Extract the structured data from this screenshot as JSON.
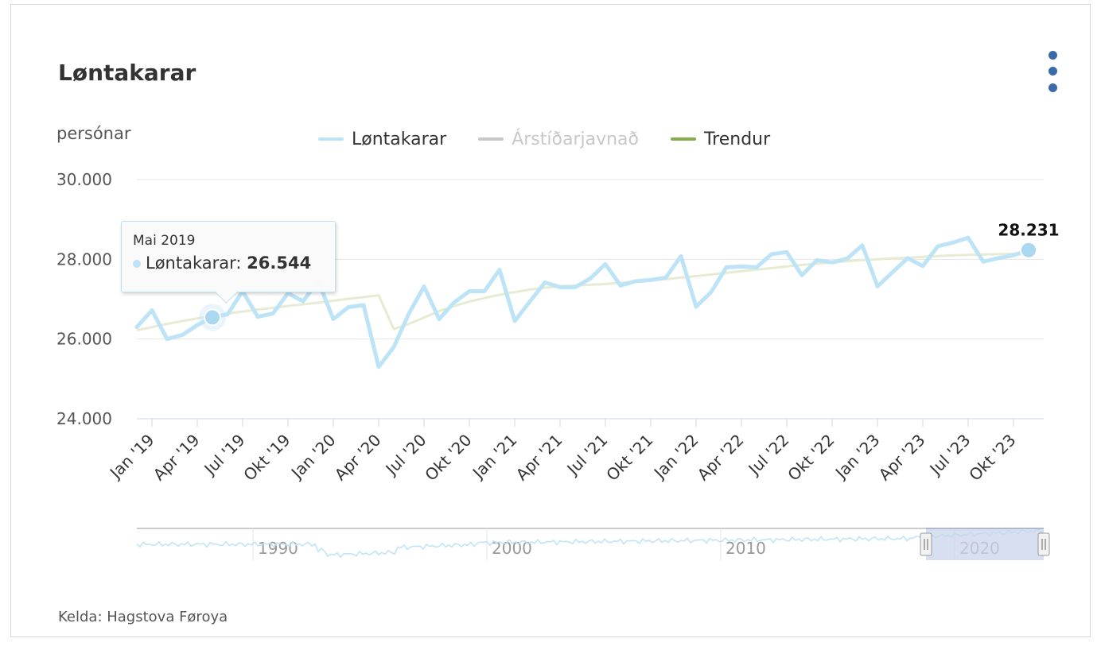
{
  "header": {
    "title": "Løntakarar",
    "menu_icon": "kebab-menu-icon"
  },
  "source": "Kelda: Hagstova Føroya",
  "tooltip": {
    "date": "Mai 2019",
    "series": "Løntakarar",
    "value": "26.544"
  },
  "last_label": "28.231",
  "colors": {
    "loentakarar": "#bde3f6",
    "arstidar": "#c8c8c8",
    "trendur": "#86ad4b",
    "trend_line": "#e6ecd4",
    "navigator_mask": "#c9d4ec",
    "menu": "#3b6aa8"
  },
  "chart_data": {
    "type": "line",
    "title": "Løntakarar",
    "ylabel": "persónar",
    "ylim": [
      24000,
      30000
    ],
    "yticks": [
      "24.000",
      "26.000",
      "28.000",
      "30.000"
    ],
    "xticks": [
      "Jan '19",
      "Apr '19",
      "Jul '19",
      "Okt '19",
      "Jan '20",
      "Apr '20",
      "Jul '20",
      "Okt '20",
      "Jan '21",
      "Apr '21",
      "Jul '21",
      "Okt '21",
      "Jan '22",
      "Apr '22",
      "Jul '22",
      "Okt '22",
      "Jan '23",
      "Apr '23",
      "Jul '23",
      "Okt '23"
    ],
    "legend": [
      {
        "name": "Løntakarar",
        "visible": true
      },
      {
        "name": "Árstíðarjavnað",
        "visible": false
      },
      {
        "name": "Trendur",
        "visible": true
      }
    ],
    "x_start": "2018-12",
    "series": [
      {
        "name": "Løntakarar",
        "values": [
          26300,
          26720,
          26000,
          26100,
          26350,
          26544,
          26620,
          27200,
          26560,
          26640,
          27150,
          26950,
          27450,
          26500,
          26800,
          26850,
          25300,
          25800,
          26640,
          27320,
          26500,
          26920,
          27200,
          27200,
          27740,
          26450,
          26940,
          27420,
          27300,
          27300,
          27520,
          27880,
          27340,
          27450,
          27480,
          27540,
          28080,
          26810,
          27180,
          27800,
          27820,
          27800,
          28130,
          28180,
          27600,
          27980,
          27920,
          28020,
          28350,
          27320,
          27680,
          28030,
          27830,
          28330,
          28420,
          28540,
          27940,
          28030,
          28100,
          28231
        ]
      },
      {
        "name": "Trendur",
        "values": [
          26220,
          26300,
          26380,
          26450,
          26520,
          26580,
          26640,
          26690,
          26740,
          26780,
          26830,
          26870,
          26910,
          26960,
          27010,
          27050,
          27100,
          26250,
          26380,
          26540,
          26700,
          26830,
          26940,
          27030,
          27110,
          27180,
          27240,
          27290,
          27320,
          27340,
          27360,
          27380,
          27410,
          27440,
          27470,
          27500,
          27540,
          27580,
          27620,
          27660,
          27700,
          27740,
          27780,
          27820,
          27860,
          27890,
          27920,
          27950,
          27980,
          28000,
          28020,
          28040,
          28060,
          28080,
          28100,
          28110,
          28120,
          28130,
          28140,
          28150
        ]
      }
    ],
    "navigator": {
      "labels": [
        "1990",
        "2000",
        "2010",
        "2020"
      ]
    },
    "grid": true
  }
}
